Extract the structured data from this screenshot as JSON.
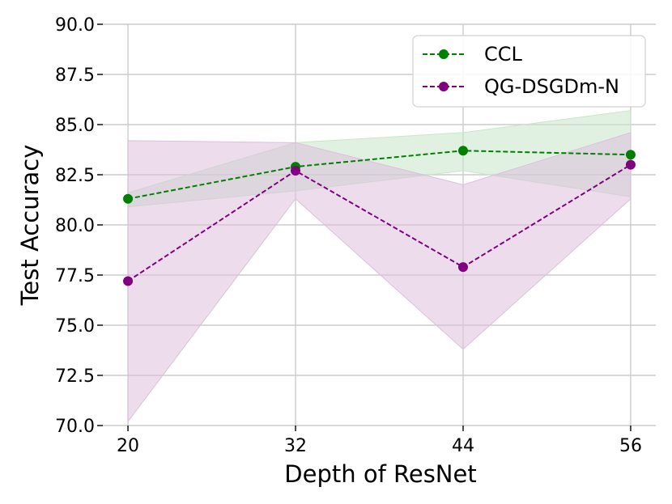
{
  "chart_data": {
    "type": "line",
    "title": "",
    "xlabel": "Depth of ResNet",
    "ylabel": "Test Accuracy",
    "categories": [
      "20",
      "32",
      "44",
      "56"
    ],
    "x": [
      20,
      32,
      44,
      56
    ],
    "xlim": [
      18.2,
      57.8
    ],
    "ylim": [
      70.0,
      90.0
    ],
    "yticks": [
      70.0,
      72.5,
      75.0,
      77.5,
      80.0,
      82.5,
      85.0,
      87.5,
      90.0
    ],
    "ytick_labels": [
      "70.0",
      "72.5",
      "75.0",
      "77.5",
      "80.0",
      "82.5",
      "85.0",
      "87.5",
      "90.0"
    ],
    "grid": true,
    "legend_position": "top-right",
    "series": [
      {
        "name": "CCL",
        "color": "#008000",
        "band_color": "#c8e6c8",
        "values": [
          81.3,
          82.9,
          83.7,
          83.5
        ],
        "upper": [
          81.6,
          84.1,
          84.6,
          85.7
        ],
        "lower": [
          80.9,
          81.7,
          82.7,
          81.4
        ]
      },
      {
        "name": "QG-DSGDm-N",
        "color": "#800080",
        "band_color": "#dcc0dc",
        "values": [
          77.2,
          82.7,
          77.9,
          83.0
        ],
        "upper": [
          84.2,
          84.1,
          82.0,
          84.6
        ],
        "lower": [
          70.2,
          81.3,
          73.8,
          81.3
        ]
      }
    ]
  }
}
